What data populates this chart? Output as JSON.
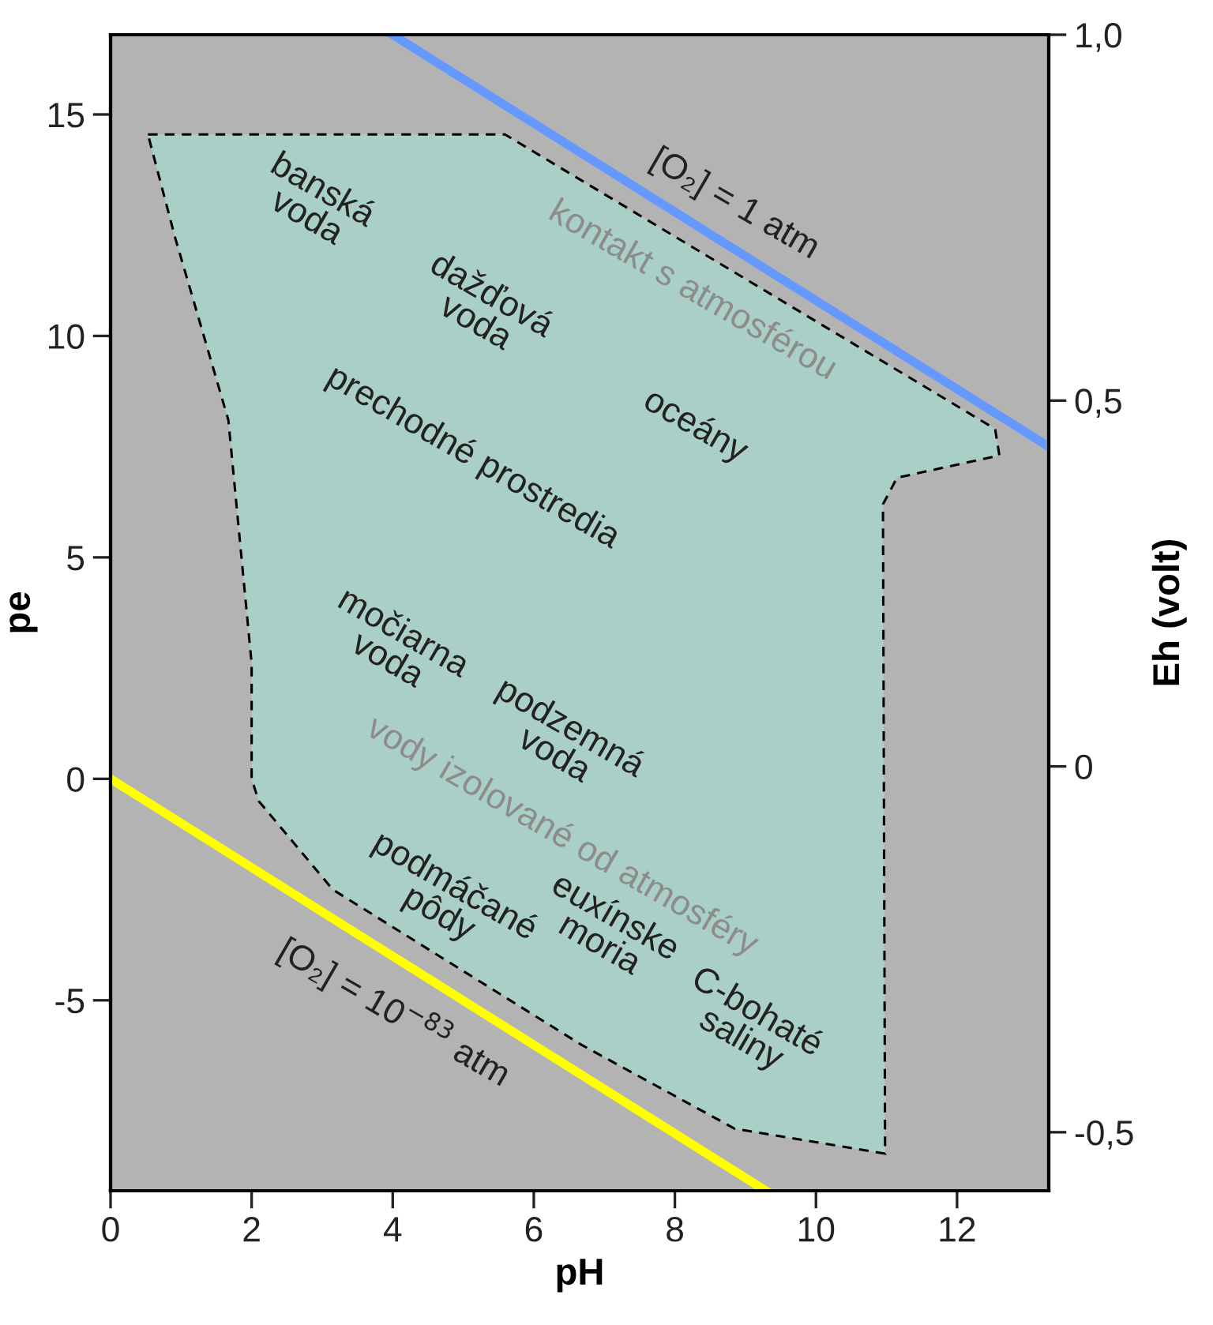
{
  "chart_data": {
    "type": "line",
    "xlabel": "pH",
    "ylabel": "pe",
    "y2label": "Eh (volt)",
    "xlim": [
      0,
      13.3
    ],
    "xticks": [
      0,
      2,
      4,
      6,
      8,
      10,
      12
    ],
    "ylim": [
      -9.3,
      16.8
    ],
    "yticks": [
      -5,
      0,
      5,
      10,
      15
    ],
    "y2lim": [
      -0.58,
      1.0
    ],
    "y2ticks": [
      {
        "value": -0.5,
        "label": "-0,5"
      },
      0,
      {
        "value": 0.5,
        "label": "0,5"
      },
      {
        "value": 1.0,
        "label": "1,0"
      }
    ],
    "series": [
      {
        "type": "area",
        "color": "#a9cfc6",
        "line_style": "dashed",
        "x": [
          0.53,
          5.59,
          12.54,
          12.6,
          11.15,
          10.95,
          10.98,
          8.85,
          6.67,
          3.15,
          2.1,
          2.0,
          2.0,
          1.67,
          0.91,
          0.53
        ],
        "values": [
          14.55,
          14.55,
          7.9,
          7.3,
          6.8,
          6.2,
          -8.46,
          -7.9,
          -6.0,
          -2.5,
          -0.5,
          0,
          2.6,
          8.1,
          12.25,
          14.55
        ]
      },
      {
        "color": "#6699ff",
        "line_style": "solid",
        "x": [
          4,
          13.3
        ],
        "values": [
          16.8,
          7.5
        ]
      },
      {
        "color": "#ffff00",
        "line_style": "solid",
        "x": [
          0,
          9.29
        ],
        "values": [
          0,
          -9.3
        ]
      }
    ],
    "annotations": [
      "banská\nvoda",
      "dažďová\nvoda",
      "prechodné prostredia",
      "oceány",
      "kontakt s atmosférou",
      "[O₂] = 1 atm",
      "močiarna\nvoda",
      "podzemná\nvoda",
      "vody izolované od atmosféry",
      "podmáčané\npôdy",
      "euxínske\nmoria",
      "C-bohaté\nsaliny",
      "[O₂] = 10$^{−83}$ atm"
    ]
  }
}
